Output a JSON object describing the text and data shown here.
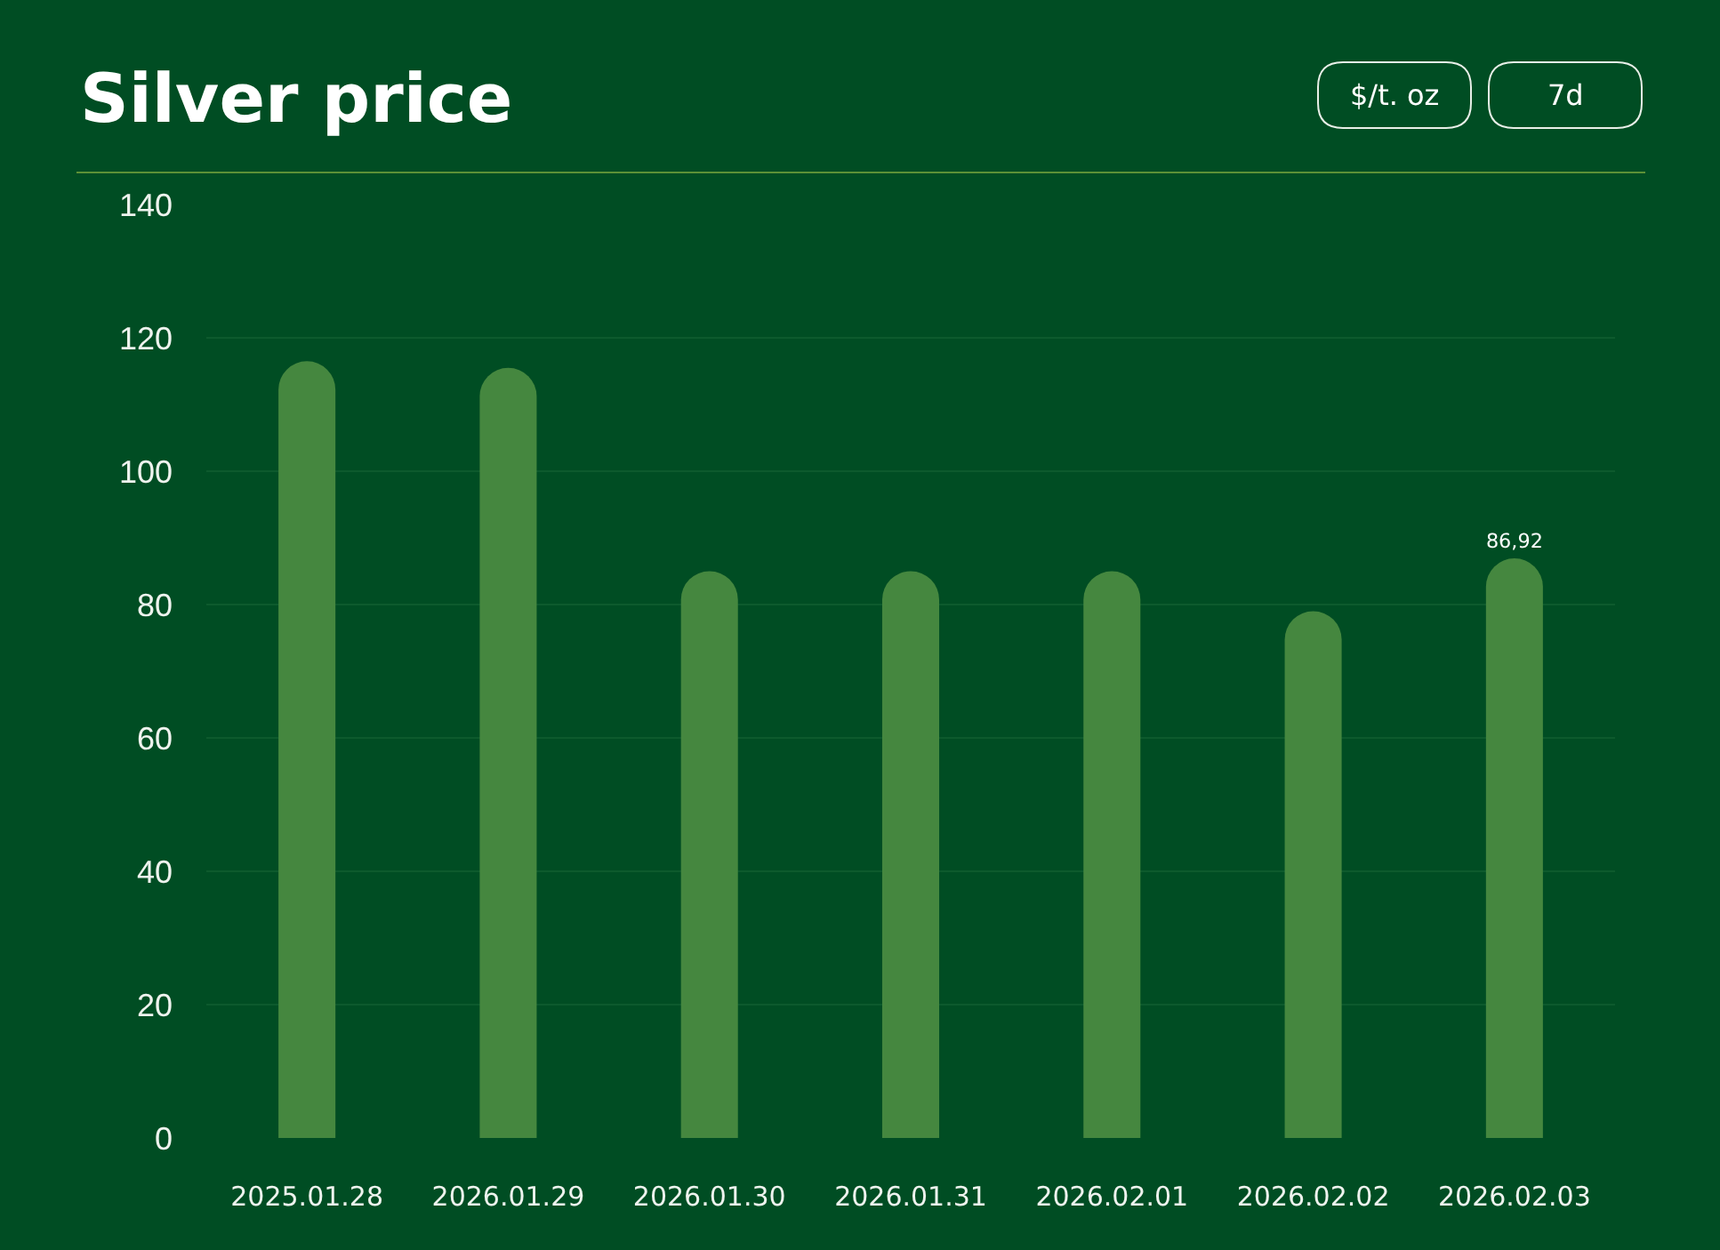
{
  "chart_data": {
    "type": "bar",
    "title": "Silver price",
    "annotations": [
      "$/t. oz",
      "7d"
    ],
    "categories": [
      "2025.01.28",
      "2026.01.29",
      "2026.01.30",
      "2026.01.31",
      "2026.02.01",
      "2026.02.02",
      "2026.02.03"
    ],
    "values": [
      116.5,
      115.5,
      85,
      85,
      85,
      79,
      86.92
    ],
    "color": "#45873f",
    "value_labels": [
      null,
      null,
      null,
      null,
      null,
      null,
      "86,92"
    ],
    "ylim": [
      0,
      140
    ],
    "yticks": [
      0,
      20,
      40,
      60,
      80,
      100,
      120,
      140
    ],
    "grid": "y"
  }
}
